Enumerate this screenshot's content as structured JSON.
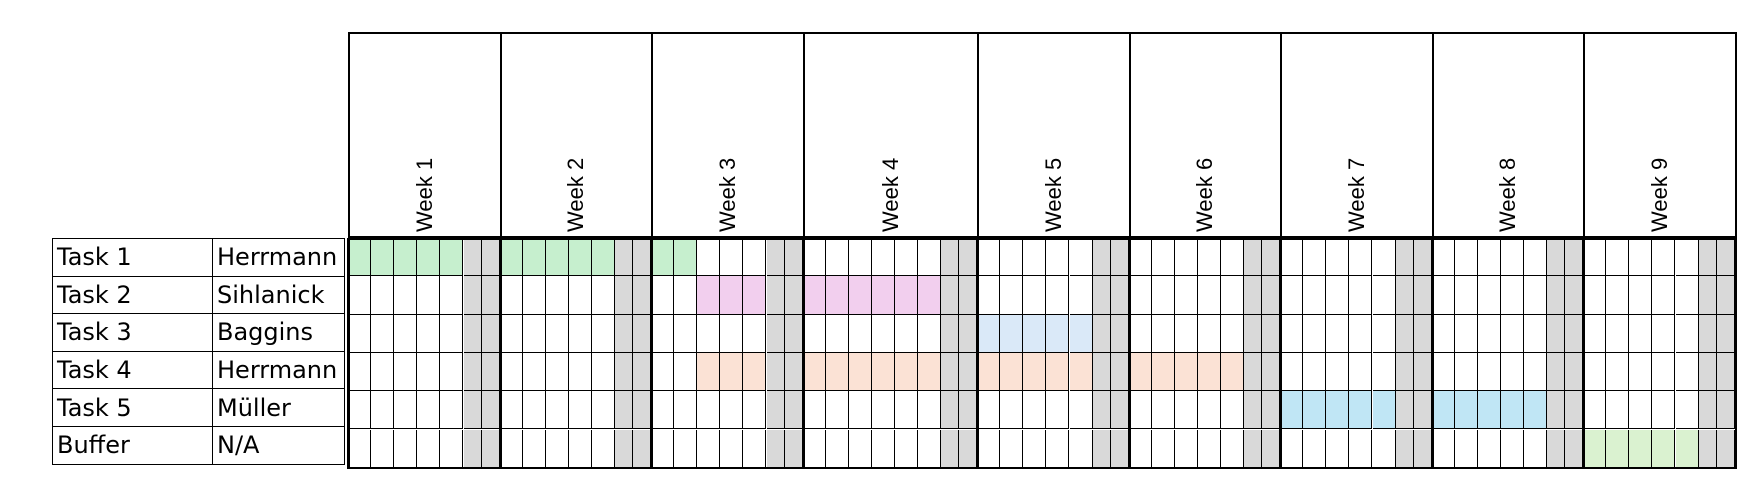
{
  "weeks": [
    {
      "label": "Week 1",
      "weekdays": 5
    },
    {
      "label": "Week 2",
      "weekdays": 5
    },
    {
      "label": "Week 3",
      "weekdays": 5
    },
    {
      "label": "Week 4",
      "weekdays": 6
    },
    {
      "label": "Week 5",
      "weekdays": 5
    },
    {
      "label": "Week 6",
      "weekdays": 5
    },
    {
      "label": "Week 7",
      "weekdays": 5
    },
    {
      "label": "Week 8",
      "weekdays": 5
    },
    {
      "label": "Week 9",
      "weekdays": 5
    }
  ],
  "tasks": [
    {
      "name": "Task 1",
      "owner": "Herrmann",
      "color": "#c6efce",
      "bars": [
        {
          "week": 1,
          "from": 1,
          "to": 5
        },
        {
          "week": 2,
          "from": 1,
          "to": 5
        },
        {
          "week": 3,
          "from": 1,
          "to": 2
        }
      ]
    },
    {
      "name": "Task 2",
      "owner": "Sihlanick",
      "color": "#f2cfee",
      "bars": [
        {
          "week": 3,
          "from": 3,
          "to": 5
        },
        {
          "week": 4,
          "from": 1,
          "to": 6
        }
      ]
    },
    {
      "name": "Task 3",
      "owner": "Baggins",
      "color": "#dae9f8",
      "bars": [
        {
          "week": 5,
          "from": 1,
          "to": 5
        }
      ]
    },
    {
      "name": "Task 4",
      "owner": "Herrmann",
      "color": "#fbe2d5",
      "bars": [
        {
          "week": 3,
          "from": 3,
          "to": 5
        },
        {
          "week": 4,
          "from": 1,
          "to": 6
        },
        {
          "week": 5,
          "from": 1,
          "to": 5
        },
        {
          "week": 6,
          "from": 1,
          "to": 5
        }
      ]
    },
    {
      "name": "Task 5",
      "owner": "Müller",
      "color": "#c0e6f5",
      "bars": [
        {
          "week": 7,
          "from": 1,
          "to": 5
        },
        {
          "week": 8,
          "from": 1,
          "to": 5
        }
      ]
    },
    {
      "name": "Buffer",
      "owner": "N/A",
      "color": "#daf2d0",
      "bars": [
        {
          "week": 9,
          "from": 1,
          "to": 5
        }
      ]
    }
  ],
  "colors": {
    "weekend": "#d9d9d9",
    "empty": "#ffffff",
    "border": "#000000"
  },
  "chart_data": {
    "type": "table",
    "title": "",
    "categories": [
      "Week 1",
      "Week 2",
      "Week 3",
      "Week 4",
      "Week 5",
      "Week 6",
      "Week 7",
      "Week 8",
      "Week 9"
    ],
    "rows": [
      {
        "task": "Task 1",
        "owner": "Herrmann",
        "span": "Week 1 day 1 – Week 3 day 2"
      },
      {
        "task": "Task 2",
        "owner": "Sihlanick",
        "span": "Week 3 day 3 – Week 4 day 6"
      },
      {
        "task": "Task 3",
        "owner": "Baggins",
        "span": "Week 5 day 1 – Week 5 day 5"
      },
      {
        "task": "Task 4",
        "owner": "Herrmann",
        "span": "Week 3 day 3 – Week 6 day 5"
      },
      {
        "task": "Task 5",
        "owner": "Müller",
        "span": "Week 7 day 1 – Week 8 day 5"
      },
      {
        "task": "Buffer",
        "owner": "N/A",
        "span": "Week 9 day 1 – Week 9 day 5"
      }
    ]
  }
}
